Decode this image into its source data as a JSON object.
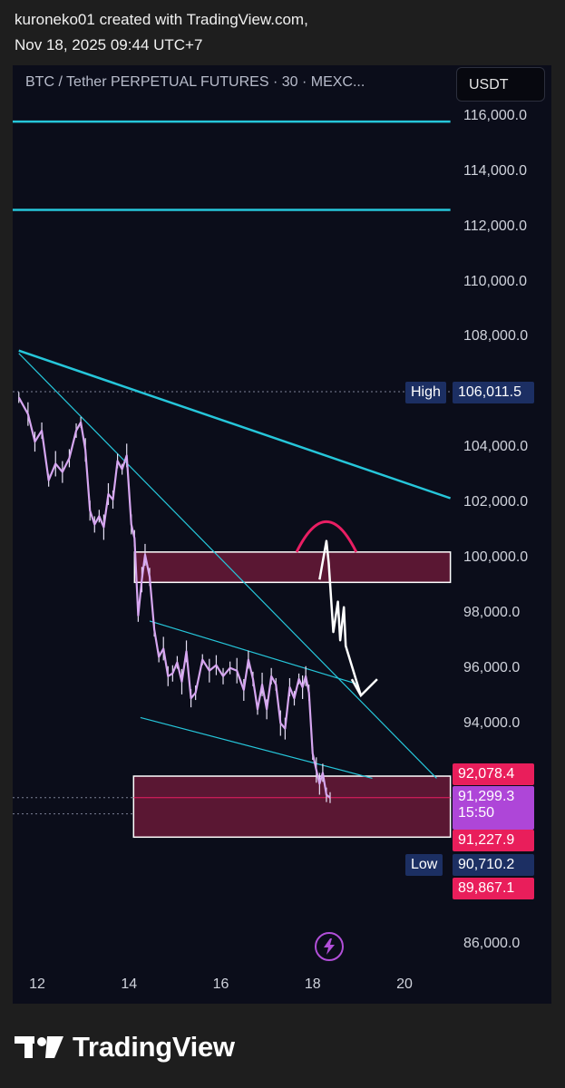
{
  "header": {
    "line1": "kuroneko01 created with TradingView.com,",
    "line2": "Nov 18, 2025 09:44 UTC+7"
  },
  "chart_data": {
    "type": "line",
    "title": "BTC / Tether PERPETUAL FUTURES · 30 · MEXC...",
    "currency": "USDT",
    "ylim": [
      85000,
      117000
    ],
    "xlim": [
      11.6,
      21.0
    ],
    "y_ticks": [
      "116,000.0",
      "114,000.0",
      "112,000.0",
      "110,000.0",
      "108,000.0",
      "106,000.0",
      "104,000.0",
      "102,000.0",
      "100,000.0",
      "98,000.0",
      "96,000.0",
      "94,000.0",
      "86,000.0"
    ],
    "y_tick_values": [
      116000,
      114000,
      112000,
      110000,
      108000,
      106000,
      104000,
      102000,
      100000,
      98000,
      96000,
      94000,
      86000
    ],
    "x_ticks": [
      "12",
      "14",
      "16",
      "18",
      "20"
    ],
    "x_tick_values": [
      12,
      14,
      16,
      18,
      20
    ],
    "grid": false,
    "colors": {
      "price": "#d6a6f0",
      "trend": "#26c6da",
      "zone_fill": "#5a1733",
      "zone_border": "#ffffff",
      "arc": "#e91e63",
      "arrow": "#ffffff"
    },
    "series": [
      {
        "x": [
          11.6,
          11.8,
          11.95,
          12.1,
          12.25,
          12.4,
          12.55,
          12.7,
          12.85,
          12.95,
          13.05,
          13.15,
          13.25,
          13.35,
          13.45,
          13.55,
          13.65,
          13.75,
          13.85,
          13.95,
          14.05,
          14.12,
          14.2,
          14.28,
          14.35,
          14.45,
          14.55,
          14.65,
          14.75,
          14.85,
          14.95,
          15.05,
          15.15,
          15.25,
          15.35,
          15.45,
          15.6,
          15.75,
          15.9,
          16.05,
          16.2,
          16.35,
          16.5,
          16.6,
          16.7,
          16.8,
          16.9,
          17.0,
          17.1,
          17.2,
          17.3,
          17.4,
          17.5,
          17.6,
          17.7,
          17.78,
          17.85,
          17.92,
          18.0,
          18.08,
          18.15,
          18.22,
          18.3,
          18.38
        ],
        "values": [
          105800,
          105200,
          104200,
          104600,
          102800,
          103400,
          103100,
          103600,
          104600,
          104900,
          103900,
          101700,
          101200,
          101500,
          101100,
          102300,
          102100,
          103500,
          103200,
          103700,
          101200,
          100700,
          97900,
          99200,
          100100,
          99300,
          97400,
          96400,
          96700,
          95700,
          95800,
          96200,
          95500,
          96600,
          94900,
          95100,
          96300,
          95900,
          96100,
          95700,
          96000,
          95900,
          95200,
          96300,
          95600,
          94500,
          95400,
          94500,
          95700,
          95400,
          94000,
          93800,
          95300,
          94900,
          95600,
          95300,
          95700,
          95100,
          92900,
          92300,
          91800,
          92200,
          91400,
          91299
        ]
      }
    ],
    "zones": [
      {
        "top": 100200,
        "bottom": 99100,
        "x_start": 14.12
      },
      {
        "top": 92078.4,
        "bottom": 89867.1,
        "x_start": 14.1
      }
    ],
    "horizontal_lines": [
      115800,
      112600
    ],
    "trend_lines": [
      {
        "x1": 11.6,
        "y1": 107500,
        "x2": 21.0,
        "y2": 102150
      },
      {
        "x1": 11.6,
        "y1": 107400,
        "x2": 20.7,
        "y2": 92000
      },
      {
        "x1": 14.45,
        "y1": 97700,
        "x2": 19.0,
        "y2": 95400
      },
      {
        "x1": 14.25,
        "y1": 94200,
        "x2": 19.3,
        "y2": 92000
      }
    ],
    "projection_arc": {
      "x_center": 18.3,
      "y_base": 100200,
      "height": 1100,
      "half_width": 0.65
    },
    "projection_path": {
      "x": [
        18.15,
        18.3,
        18.35,
        18.45,
        18.55,
        18.6,
        18.68,
        18.72,
        19.05
      ],
      "values": [
        99200,
        100600,
        99800,
        97300,
        98400,
        97000,
        98200,
        96800,
        95000
      ]
    },
    "projection_arrowhead": {
      "x": 19.05,
      "y": 95000
    },
    "reference_dotted_levels": [
      106011.5,
      91299.3,
      90710.2
    ],
    "price_tags": [
      {
        "label": "High",
        "value_text": "106,011.5",
        "value": 106011.5,
        "style": "navy"
      },
      {
        "value_text": "92,078.4",
        "value": 92078.4,
        "style": "pink"
      },
      {
        "value_text": "91,299.3",
        "sub_text": "15:50",
        "value": 91299.3,
        "style": "purple"
      },
      {
        "value_text": "91,227.9",
        "value": 91227.9,
        "style": "pink"
      },
      {
        "label": "Low",
        "value_text": "90,710.2",
        "value": 90710.2,
        "style": "navy"
      },
      {
        "value_text": "89,867.1",
        "value": 89867.1,
        "style": "pink"
      }
    ]
  },
  "footer": {
    "brand": "TradingView",
    "logo_icon": "tradingview-logo-icon"
  },
  "icons": {
    "bolt": "lightning-bolt-icon"
  }
}
